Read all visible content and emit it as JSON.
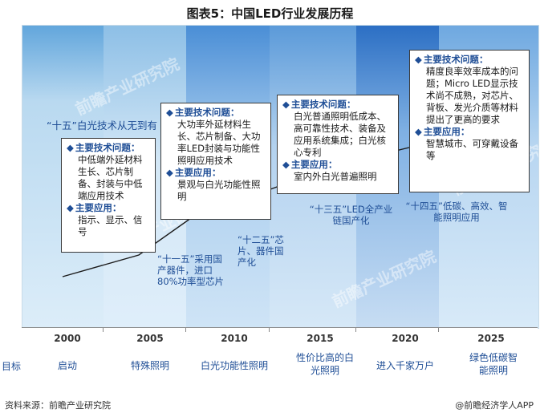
{
  "title": "图表5：中国LED行业发展历程",
  "periods": [
    {
      "label": "“十五”白光技术从无到有"
    },
    {
      "label": "“十一五”采用国产器件，进口80%功率型芯片"
    },
    {
      "label": "“十二五”芯片、器件国产化"
    },
    {
      "label": "“十三五”LED全产业链国产化"
    },
    {
      "label": "“十四五”低碳、高效、智能照明应用"
    }
  ],
  "boxes": [
    {
      "problem_heading": "主要技术问题：",
      "problem_text": "中低端外延材料生长、芯片制备、封装与中低端应用技术",
      "app_heading": "主要应用：",
      "app_text": "指示、显示、信号"
    },
    {
      "problem_heading": "主要技术问题：",
      "problem_text": "大功率外延材料生长、芯片制备、大功率LED封装与功能性照明应用技术",
      "app_heading": "主要应用：",
      "app_text": "景观与白光功能性照明"
    },
    {
      "problem_heading": "主要技术问题：",
      "problem_text": "白光普通照明低成本、高可靠性技术、装备及应用系统集成；白光核心专利",
      "app_heading": "主要应用：",
      "app_text": "室内外白光普遍照明"
    },
    {
      "problem_heading": "主要技术问题：",
      "problem_text": "精度良率效率成本的问题；Micro LED显示技术尚不成熟，对芯片、背板、发光介质等材料提出了更高的要求",
      "app_heading": "主要应用：",
      "app_text": "智慧城市、可穿戴设备等"
    }
  ],
  "years": [
    "2000",
    "2005",
    "2010",
    "2015",
    "2020",
    "2025"
  ],
  "goal_label": "目标",
  "goals": [
    "启动",
    "特殊照明",
    "白光功能性照明",
    "性价比高的白光照明",
    "进入千家万户",
    "绿色低碳智能照明"
  ],
  "source": "资料来源：前瞻产业研究院",
  "brand": "@前瞻经济学人APP",
  "watermark": "前瞻产业研究院",
  "colors": {
    "accent": "#1f4e96",
    "trend_line": "#1a1a1a"
  }
}
